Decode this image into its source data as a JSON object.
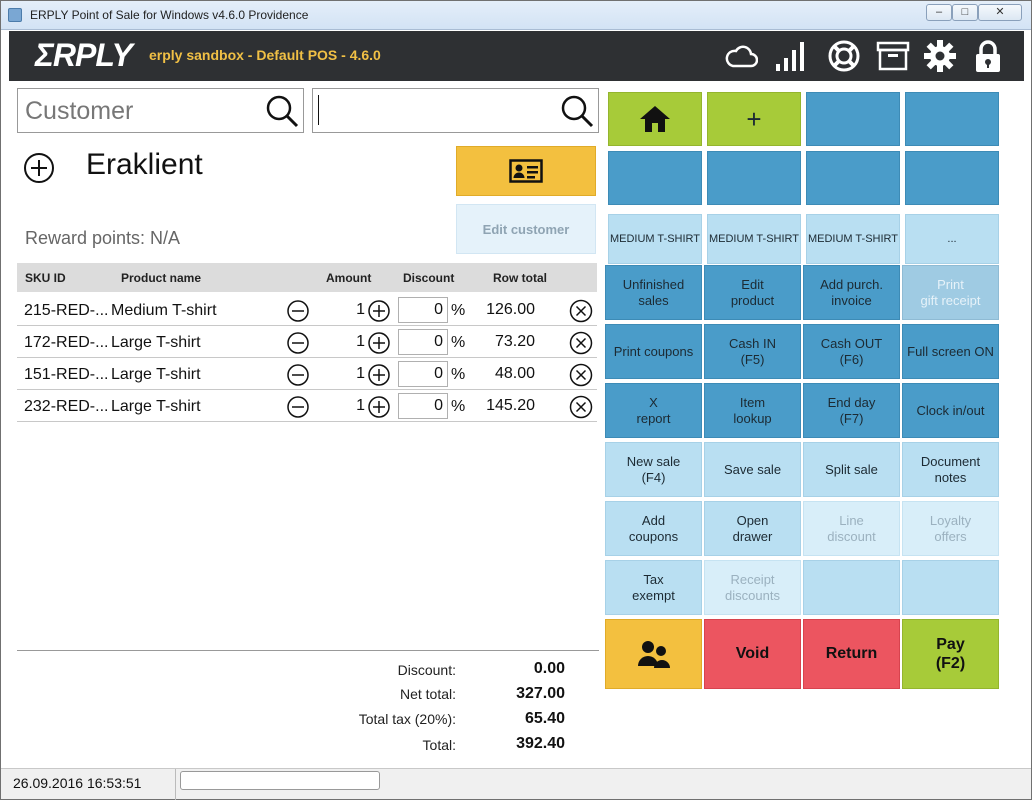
{
  "window": {
    "title": "ERPLY Point of Sale for Windows v4.6.0 Providence"
  },
  "header": {
    "logo": "ΣRPLY",
    "subtitle": "erply sandbox - Default POS - 4.6.0"
  },
  "customer_search": {
    "placeholder": "Customer"
  },
  "product_search": {
    "value": ""
  },
  "customer": {
    "name": "Eraklient",
    "reward_points": "Reward points: N/A",
    "edit_label": "Edit customer"
  },
  "table": {
    "headers": {
      "sku": "SKU ID",
      "name": "Product name",
      "amount": "Amount",
      "discount": "Discount",
      "total": "Row total"
    },
    "rows": [
      {
        "sku": "215-RED-...",
        "name": "Medium T-shirt",
        "amount": "1",
        "discount": "0",
        "pct": "%",
        "total": "126.00"
      },
      {
        "sku": "172-RED-...",
        "name": "Large T-shirt",
        "amount": "1",
        "discount": "0",
        "pct": "%",
        "total": "73.20"
      },
      {
        "sku": "151-RED-...",
        "name": "Large T-shirt",
        "amount": "1",
        "discount": "0",
        "pct": "%",
        "total": "48.00"
      },
      {
        "sku": "232-RED-...",
        "name": "Large T-shirt",
        "amount": "1",
        "discount": "0",
        "pct": "%",
        "total": "145.20"
      }
    ]
  },
  "summary": {
    "discount_label": "Discount:",
    "discount": "0.00",
    "net_label": "Net total:",
    "net": "327.00",
    "tax_label": "Total tax (20%):",
    "tax": "65.40",
    "total_label": "Total:",
    "total": "392.40"
  },
  "quick": {
    "add": "+",
    "p1": "MEDIUM T-SHIRT",
    "p2": "MEDIUM T-SHIRT",
    "p3": "MEDIUM T-SHIRT",
    "more": "..."
  },
  "functions": {
    "unfinished": "Unfinished sales",
    "edit_product": "Edit\nproduct",
    "add_purch": "Add purch.\ninvoice",
    "print_gift": "Print\ngift receipt",
    "print_coupons": "Print coupons",
    "cash_in": "Cash IN\n(F5)",
    "cash_out": "Cash OUT\n(F6)",
    "full_screen": "Full screen ON",
    "x_report": "X\nreport",
    "item_lookup": "Item\nlookup",
    "end_day": "End day\n(F7)",
    "clock": "Clock in/out",
    "new_sale": "New sale\n(F4)",
    "save_sale": "Save sale",
    "split_sale": "Split sale",
    "doc_notes": "Document\nnotes",
    "add_coupons": "Add\ncoupons",
    "open_drawer": "Open\ndrawer",
    "line_discount": "Line\ndiscount",
    "loyalty": "Loyalty\noffers",
    "tax_exempt": "Tax\nexempt",
    "receipt_discounts": "Receipt\ndiscounts",
    "void": "Void",
    "return": "Return",
    "pay": "Pay\n(F2)"
  },
  "status": {
    "datetime": "26.09.2016 16:53:51"
  },
  "colors": {
    "header_bg": "#2e3033",
    "subtitle": "#f1c045",
    "tile_dark": "#4a9cc9",
    "tile_light": "#b9dff2",
    "green": "#a7cb39",
    "yellow": "#f3c03f",
    "red": "#ec5560"
  },
  "icons": [
    "home-icon",
    "cloud-icon",
    "signal-icon",
    "lifebuoy-icon",
    "archive-icon",
    "gear-icon",
    "lock-icon",
    "search-icon",
    "id-card-icon",
    "customers-icon"
  ]
}
